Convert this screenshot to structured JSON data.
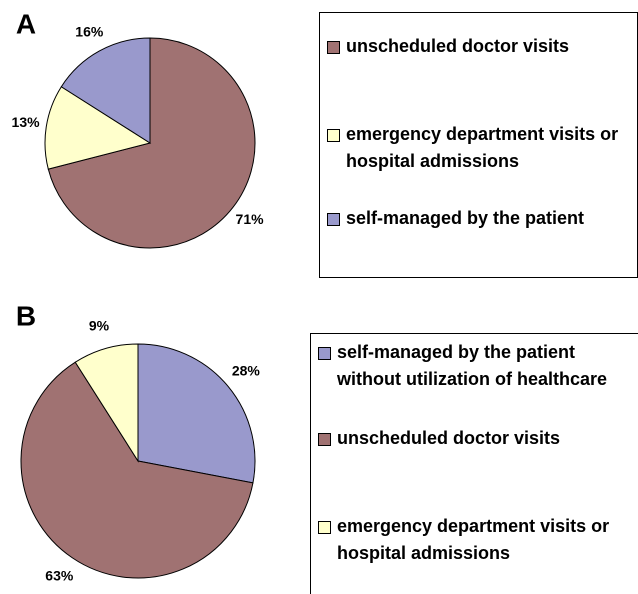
{
  "chart_data": [
    {
      "type": "pie",
      "label": "A",
      "categories": [
        "unscheduled doctor visits",
        "emergency department visits or hospital admissions",
        "self-managed by the patient"
      ],
      "values": [
        71,
        13,
        16
      ],
      "value_labels": [
        "71%",
        "13%",
        "16%"
      ],
      "colors": [
        "#a07272",
        "#ffffcc",
        "#9999cc"
      ]
    },
    {
      "type": "pie",
      "label": "B",
      "categories": [
        "self-managed by the patient without utilization of healthcare",
        "unscheduled doctor visits",
        "emergency department visits or hospital admissions"
      ],
      "values": [
        28,
        63,
        9
      ],
      "value_labels": [
        "28%",
        "63%",
        "9%"
      ],
      "colors": [
        "#9999cc",
        "#a07272",
        "#ffffcc"
      ]
    }
  ]
}
